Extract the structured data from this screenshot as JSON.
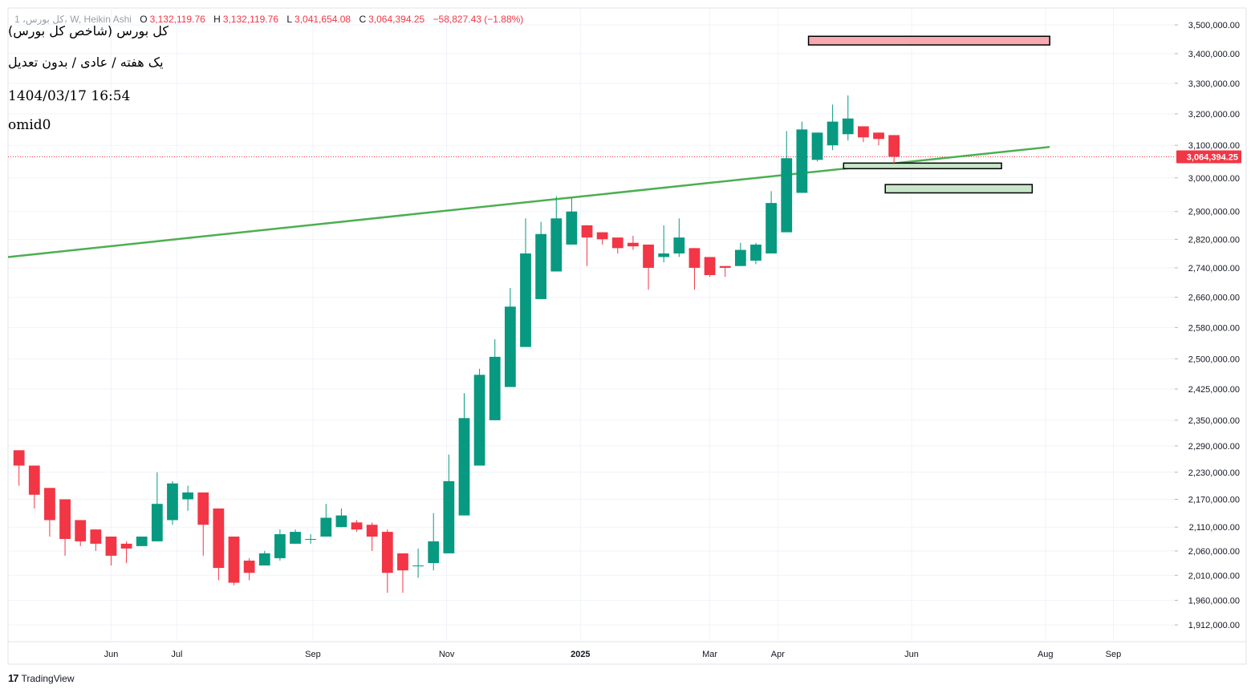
{
  "header": {
    "symbol": "1 ،کل بورس، W, Heikin Ashi",
    "o_label": "O",
    "o_value": "3,132,119.76",
    "h_label": "H",
    "h_value": "3,132,119.76",
    "l_label": "L",
    "l_value": "3,041,654.08",
    "c_label": "C",
    "c_value": "3,064,394.25",
    "change": "−58,827.43 (−1.88%)"
  },
  "annotations": {
    "title_fa": "کل بورس (شاخص کل بورس)",
    "subtitle_fa": "یک هفته / عادی / بدون تعدیل",
    "datetime": "1404/03/17 16:54",
    "author": "omid0"
  },
  "footer": {
    "brand": "TradingView",
    "logo_icon": "tradingview-logo-icon"
  },
  "colors": {
    "up": "#089981",
    "down": "#f23645",
    "trendline": "#4caf50",
    "resistance_zone": "#f7a9b0",
    "support_zone": "#c8e6c9",
    "price_label": "#f23645"
  },
  "chart_data": {
    "type": "candlestick",
    "style": "Heikin Ashi",
    "interval": "1W",
    "y_scale": "log",
    "ylim": [
      1880000,
      3560000
    ],
    "x_range": [
      "2024-04-15",
      "2025-09-29"
    ],
    "grid": true,
    "last_price": 3064394.25,
    "last_price_label": "3,064,394.25",
    "y_ticks": [
      {
        "value": 3500000,
        "label": "3,500,000.00"
      },
      {
        "value": 3400000,
        "label": "3,400,000.00"
      },
      {
        "value": 3300000,
        "label": "3,300,000.00"
      },
      {
        "value": 3200000,
        "label": "3,200,000.00"
      },
      {
        "value": 3100000,
        "label": "3,100,000.00"
      },
      {
        "value": 3000000,
        "label": "3,000,000.00"
      },
      {
        "value": 2900000,
        "label": "2,900,000.00"
      },
      {
        "value": 2820000,
        "label": "2,820,000.00"
      },
      {
        "value": 2740000,
        "label": "2,740,000.00"
      },
      {
        "value": 2660000,
        "label": "2,660,000.00"
      },
      {
        "value": 2580000,
        "label": "2,580,000.00"
      },
      {
        "value": 2500000,
        "label": "2,500,000.00"
      },
      {
        "value": 2425000,
        "label": "2,425,000.00"
      },
      {
        "value": 2350000,
        "label": "2,350,000.00"
      },
      {
        "value": 2290000,
        "label": "2,290,000.00"
      },
      {
        "value": 2230000,
        "label": "2,230,000.00"
      },
      {
        "value": 2170000,
        "label": "2,170,000.00"
      },
      {
        "value": 2110000,
        "label": "2,110,000.00"
      },
      {
        "value": 2060000,
        "label": "2,060,000.00"
      },
      {
        "value": 2010000,
        "label": "2,010,000.00"
      },
      {
        "value": 1960000,
        "label": "1,960,000.00"
      },
      {
        "value": 1912000,
        "label": "1,912,000.00"
      }
    ],
    "x_ticks": [
      {
        "date": "2024-06-01",
        "label": "Jun",
        "bold": false
      },
      {
        "date": "2024-07-01",
        "label": "Jul",
        "bold": false
      },
      {
        "date": "2024-09-01",
        "label": "Sep",
        "bold": false
      },
      {
        "date": "2024-11-01",
        "label": "Nov",
        "bold": false
      },
      {
        "date": "2025-01-01",
        "label": "2025",
        "bold": true
      },
      {
        "date": "2025-03-01",
        "label": "Mar",
        "bold": false
      },
      {
        "date": "2025-04-01",
        "label": "Apr",
        "bold": false
      },
      {
        "date": "2025-06-01",
        "label": "Jun",
        "bold": false
      },
      {
        "date": "2025-08-01",
        "label": "Aug",
        "bold": false
      },
      {
        "date": "2025-09-01",
        "label": "Sep",
        "bold": false
      }
    ],
    "candles": [
      {
        "date": "2024-04-20",
        "o": 2280000,
        "h": 2280000,
        "l": 2200000,
        "c": 2245000
      },
      {
        "date": "2024-04-27",
        "o": 2245000,
        "h": 2245000,
        "l": 2150000,
        "c": 2180000
      },
      {
        "date": "2024-05-04",
        "o": 2195000,
        "h": 2195000,
        "l": 2090000,
        "c": 2125000
      },
      {
        "date": "2024-05-11",
        "o": 2170000,
        "h": 2170000,
        "l": 2050000,
        "c": 2085000
      },
      {
        "date": "2024-05-18",
        "o": 2125000,
        "h": 2125000,
        "l": 2070000,
        "c": 2080000
      },
      {
        "date": "2024-05-25",
        "o": 2105000,
        "h": 2105000,
        "l": 2060000,
        "c": 2075000
      },
      {
        "date": "2024-06-01",
        "o": 2090000,
        "h": 2090000,
        "l": 2030000,
        "c": 2050000
      },
      {
        "date": "2024-06-08",
        "o": 2075000,
        "h": 2080000,
        "l": 2035000,
        "c": 2065000
      },
      {
        "date": "2024-06-15",
        "o": 2070000,
        "h": 2090000,
        "l": 2070000,
        "c": 2090000
      },
      {
        "date": "2024-06-22",
        "o": 2080000,
        "h": 2230000,
        "l": 2080000,
        "c": 2160000
      },
      {
        "date": "2024-06-29",
        "o": 2125000,
        "h": 2210000,
        "l": 2115000,
        "c": 2205000
      },
      {
        "date": "2024-07-06",
        "o": 2170000,
        "h": 2200000,
        "l": 2145000,
        "c": 2185000
      },
      {
        "date": "2024-07-13",
        "o": 2185000,
        "h": 2185000,
        "l": 2050000,
        "c": 2115000
      },
      {
        "date": "2024-07-20",
        "o": 2150000,
        "h": 2150000,
        "l": 2000000,
        "c": 2025000
      },
      {
        "date": "2024-07-27",
        "o": 2090000,
        "h": 2090000,
        "l": 1990000,
        "c": 1995000
      },
      {
        "date": "2024-08-03",
        "o": 2040000,
        "h": 2045000,
        "l": 2000000,
        "c": 2015000
      },
      {
        "date": "2024-08-10",
        "o": 2030000,
        "h": 2060000,
        "l": 2030000,
        "c": 2055000
      },
      {
        "date": "2024-08-17",
        "o": 2045000,
        "h": 2105000,
        "l": 2040000,
        "c": 2095000
      },
      {
        "date": "2024-08-24",
        "o": 2075000,
        "h": 2105000,
        "l": 2075000,
        "c": 2100000
      },
      {
        "date": "2024-08-31",
        "o": 2085000,
        "h": 2095000,
        "l": 2075000,
        "c": 2085000
      },
      {
        "date": "2024-09-07",
        "o": 2090000,
        "h": 2160000,
        "l": 2090000,
        "c": 2130000
      },
      {
        "date": "2024-09-14",
        "o": 2110000,
        "h": 2150000,
        "l": 2110000,
        "c": 2135000
      },
      {
        "date": "2024-09-21",
        "o": 2120000,
        "h": 2125000,
        "l": 2100000,
        "c": 2105000
      },
      {
        "date": "2024-09-28",
        "o": 2115000,
        "h": 2120000,
        "l": 2060000,
        "c": 2090000
      },
      {
        "date": "2024-10-05",
        "o": 2100000,
        "h": 2105000,
        "l": 1975000,
        "c": 2015000
      },
      {
        "date": "2024-10-12",
        "o": 2055000,
        "h": 2055000,
        "l": 1975000,
        "c": 2020000
      },
      {
        "date": "2024-10-19",
        "o": 2030000,
        "h": 2065000,
        "l": 2005000,
        "c": 2030000
      },
      {
        "date": "2024-10-26",
        "o": 2035000,
        "h": 2140000,
        "l": 2020000,
        "c": 2080000
      },
      {
        "date": "2024-11-02",
        "o": 2055000,
        "h": 2270000,
        "l": 2055000,
        "c": 2210000
      },
      {
        "date": "2024-11-09",
        "o": 2135000,
        "h": 2415000,
        "l": 2135000,
        "c": 2355000
      },
      {
        "date": "2024-11-16",
        "o": 2245000,
        "h": 2475000,
        "l": 2245000,
        "c": 2460000
      },
      {
        "date": "2024-11-23",
        "o": 2350000,
        "h": 2550000,
        "l": 2350000,
        "c": 2505000
      },
      {
        "date": "2024-11-30",
        "o": 2430000,
        "h": 2685000,
        "l": 2430000,
        "c": 2635000
      },
      {
        "date": "2024-12-07",
        "o": 2530000,
        "h": 2880000,
        "l": 2530000,
        "c": 2780000
      },
      {
        "date": "2024-12-14",
        "o": 2655000,
        "h": 2870000,
        "l": 2655000,
        "c": 2835000
      },
      {
        "date": "2024-12-21",
        "o": 2730000,
        "h": 2945000,
        "l": 2730000,
        "c": 2880000
      },
      {
        "date": "2024-12-28",
        "o": 2805000,
        "h": 2940000,
        "l": 2805000,
        "c": 2900000
      },
      {
        "date": "2025-01-04",
        "o": 2860000,
        "h": 2860000,
        "l": 2745000,
        "c": 2825000
      },
      {
        "date": "2025-01-11",
        "o": 2840000,
        "h": 2840000,
        "l": 2805000,
        "c": 2820000
      },
      {
        "date": "2025-01-18",
        "o": 2825000,
        "h": 2825000,
        "l": 2780000,
        "c": 2795000
      },
      {
        "date": "2025-01-25",
        "o": 2810000,
        "h": 2830000,
        "l": 2790000,
        "c": 2800000
      },
      {
        "date": "2025-02-01",
        "o": 2805000,
        "h": 2805000,
        "l": 2680000,
        "c": 2740000
      },
      {
        "date": "2025-02-08",
        "o": 2770000,
        "h": 2860000,
        "l": 2755000,
        "c": 2780000
      },
      {
        "date": "2025-02-15",
        "o": 2780000,
        "h": 2880000,
        "l": 2770000,
        "c": 2825000
      },
      {
        "date": "2025-02-22",
        "o": 2795000,
        "h": 2795000,
        "l": 2680000,
        "c": 2740000
      },
      {
        "date": "2025-03-01",
        "o": 2770000,
        "h": 2770000,
        "l": 2715000,
        "c": 2720000
      },
      {
        "date": "2025-03-08",
        "o": 2745000,
        "h": 2745000,
        "l": 2715000,
        "c": 2740000
      },
      {
        "date": "2025-03-15",
        "o": 2745000,
        "h": 2810000,
        "l": 2745000,
        "c": 2790000
      },
      {
        "date": "2025-03-22",
        "o": 2760000,
        "h": 2810000,
        "l": 2750000,
        "c": 2805000
      },
      {
        "date": "2025-03-29",
        "o": 2780000,
        "h": 2960000,
        "l": 2780000,
        "c": 2925000
      },
      {
        "date": "2025-04-05",
        "o": 2840000,
        "h": 3145000,
        "l": 2840000,
        "c": 3060000
      },
      {
        "date": "2025-04-12",
        "o": 2955000,
        "h": 3175000,
        "l": 2955000,
        "c": 3150000
      },
      {
        "date": "2025-04-19",
        "o": 3055000,
        "h": 3140000,
        "l": 3050000,
        "c": 3140000
      },
      {
        "date": "2025-04-26",
        "o": 3100000,
        "h": 3230000,
        "l": 3085000,
        "c": 3175000
      },
      {
        "date": "2025-05-03",
        "o": 3135000,
        "h": 3260000,
        "l": 3115000,
        "c": 3185000
      },
      {
        "date": "2025-05-10",
        "o": 3160000,
        "h": 3160000,
        "l": 3110000,
        "c": 3125000
      },
      {
        "date": "2025-05-17",
        "o": 3140000,
        "h": 3140000,
        "l": 3100000,
        "c": 3120000
      },
      {
        "date": "2025-05-24",
        "o": 3132119.76,
        "h": 3132119.76,
        "l": 3041654.08,
        "c": 3064394.25
      }
    ],
    "trendline": {
      "from": {
        "date": "2024-04-15",
        "value": 2770000
      },
      "to": {
        "date": "2025-08-03",
        "value": 3095000
      }
    },
    "zones": [
      {
        "name": "resistance-zone",
        "from": "2025-04-15",
        "to": "2025-08-03",
        "top": 3460000,
        "bottom": 3430000,
        "kind": "red"
      },
      {
        "name": "support-zone-1",
        "from": "2025-05-01",
        "to": "2025-07-12",
        "top": 3045000,
        "bottom": 3028000,
        "kind": "green"
      },
      {
        "name": "support-zone-2",
        "from": "2025-05-20",
        "to": "2025-07-26",
        "top": 2980000,
        "bottom": 2955000,
        "kind": "green"
      }
    ]
  }
}
